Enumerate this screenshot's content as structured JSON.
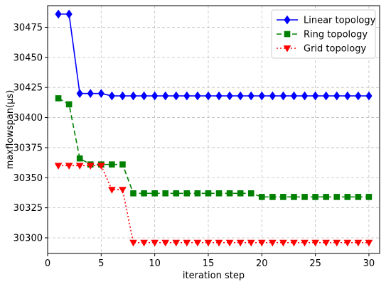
{
  "chart_data": {
    "type": "line",
    "xlabel": "iteration step",
    "ylabel": "maxflowspan(μs)",
    "xlim": [
      0,
      31
    ],
    "ylim": [
      30287,
      30493
    ],
    "x_ticks": [
      0,
      5,
      10,
      15,
      20,
      25,
      30
    ],
    "y_ticks": [
      30300,
      30325,
      30350,
      30375,
      30400,
      30425,
      30450,
      30475
    ],
    "grid": true,
    "legend_position": "top-right",
    "x": [
      1,
      2,
      3,
      4,
      5,
      6,
      7,
      8,
      9,
      10,
      11,
      12,
      13,
      14,
      15,
      16,
      17,
      18,
      19,
      20,
      21,
      22,
      23,
      24,
      25,
      26,
      27,
      28,
      29,
      30
    ],
    "series": [
      {
        "name": "Linear topology",
        "color": "#0000ff",
        "line_style": "solid",
        "marker": "diamond",
        "values": [
          30486,
          30486,
          30420,
          30420,
          30420,
          30418,
          30418,
          30418,
          30418,
          30418,
          30418,
          30418,
          30418,
          30418,
          30418,
          30418,
          30418,
          30418,
          30418,
          30418,
          30418,
          30418,
          30418,
          30418,
          30418,
          30418,
          30418,
          30418,
          30418,
          30418
        ]
      },
      {
        "name": "Ring topology",
        "color": "#008000",
        "line_style": "dashed",
        "marker": "square",
        "values": [
          30416,
          30411,
          30366,
          30361,
          30361,
          30361,
          30361,
          30337,
          30337,
          30337,
          30337,
          30337,
          30337,
          30337,
          30337,
          30337,
          30337,
          30337,
          30337,
          30334,
          30334,
          30334,
          30334,
          30334,
          30334,
          30334,
          30334,
          30334,
          30334,
          30334
        ]
      },
      {
        "name": "Grid topology",
        "color": "#ff0000",
        "line_style": "dotted",
        "marker": "triangle-down",
        "values": [
          30360,
          30360,
          30360,
          30360,
          30360,
          30340,
          30340,
          30296,
          30296,
          30296,
          30296,
          30296,
          30296,
          30296,
          30296,
          30296,
          30296,
          30296,
          30296,
          30296,
          30296,
          30296,
          30296,
          30296,
          30296,
          30296,
          30296,
          30296,
          30296,
          30296
        ]
      }
    ]
  }
}
